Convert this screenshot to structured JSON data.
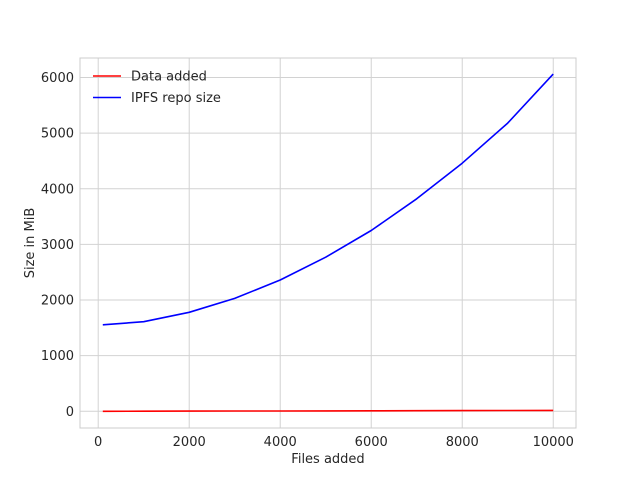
{
  "chart_data": {
    "type": "line",
    "title": "",
    "xlabel": "Files added",
    "ylabel": "Size in MiB",
    "xlim": [
      -400,
      10500
    ],
    "ylim": [
      -300,
      6350
    ],
    "xticks": [
      0,
      2000,
      4000,
      6000,
      8000,
      10000
    ],
    "yticks": [
      0,
      1000,
      2000,
      3000,
      4000,
      5000,
      6000
    ],
    "grid": true,
    "legend_position": "top-left",
    "series": [
      {
        "name": "Data added",
        "color": "#ff0000",
        "x": [
          100,
          1000,
          2000,
          3000,
          4000,
          5000,
          6000,
          7000,
          8000,
          9000,
          10000
        ],
        "y": [
          0,
          2,
          3,
          5,
          6,
          8,
          10,
          11,
          13,
          14,
          16
        ]
      },
      {
        "name": "IPFS repo size",
        "color": "#0000ff",
        "x": [
          100,
          1000,
          2000,
          3000,
          4000,
          5000,
          6000,
          7000,
          8000,
          9000,
          10000
        ],
        "y": [
          1555,
          1610,
          1780,
          2030,
          2360,
          2770,
          3250,
          3820,
          4460,
          5180,
          6060
        ]
      }
    ]
  }
}
